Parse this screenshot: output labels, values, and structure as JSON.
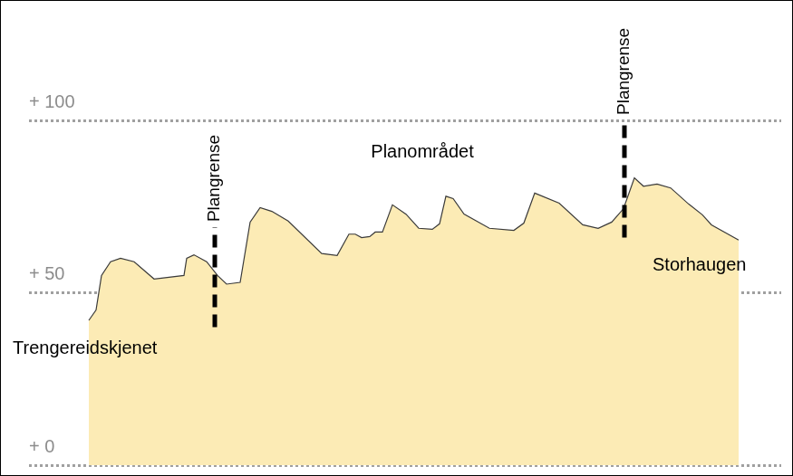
{
  "chart_data": {
    "type": "area",
    "x": [
      66,
      74,
      80,
      90,
      101,
      116,
      138,
      171,
      174,
      182,
      196,
      208,
      218,
      233,
      244,
      255,
      268,
      286,
      323,
      340,
      353,
      360,
      367,
      376,
      382,
      390,
      401,
      416,
      430,
      445,
      453,
      460,
      468,
      480,
      508,
      535,
      546,
      558,
      585,
      611,
      628,
      643,
      656,
      668,
      678,
      693,
      708,
      728,
      743,
      753,
      783
    ],
    "values": [
      42,
      45,
      55,
      59,
      60,
      59,
      54,
      55,
      60,
      61,
      59,
      55,
      52.5,
      53,
      70.5,
      74.7,
      73.6,
      70.8,
      61.4,
      60.8,
      67,
      67,
      66,
      66.3,
      67.6,
      67.6,
      75.5,
      72.8,
      68.7,
      68.4,
      70,
      78,
      77.3,
      72.8,
      68.7,
      68.1,
      70.2,
      78.9,
      76,
      69.7,
      68.7,
      70.5,
      74.4,
      83.3,
      80.9,
      81.5,
      80.4,
      75.7,
      72.6,
      69.7,
      65.3
    ],
    "color": "#fcebb5",
    "xlim": [
      0,
      830
    ],
    "ylim": [
      0,
      100
    ],
    "yticks": [
      {
        "value": 0,
        "label": "+ 0"
      },
      {
        "value": 50,
        "label": "+ 50"
      },
      {
        "value": 100,
        "label": "+ 100"
      }
    ],
    "grid": true,
    "tick_labels": "y",
    "annotations": [
      {
        "text": "Plangrense",
        "x": 205,
        "from": 40,
        "to": 69
      },
      {
        "text": "Plangrense",
        "x": 657,
        "from": 66,
        "to": 100
      },
      {
        "text": "Planområdet"
      },
      {
        "text": "Trengereidskjenet"
      },
      {
        "text": "Storhaugen"
      }
    ]
  }
}
